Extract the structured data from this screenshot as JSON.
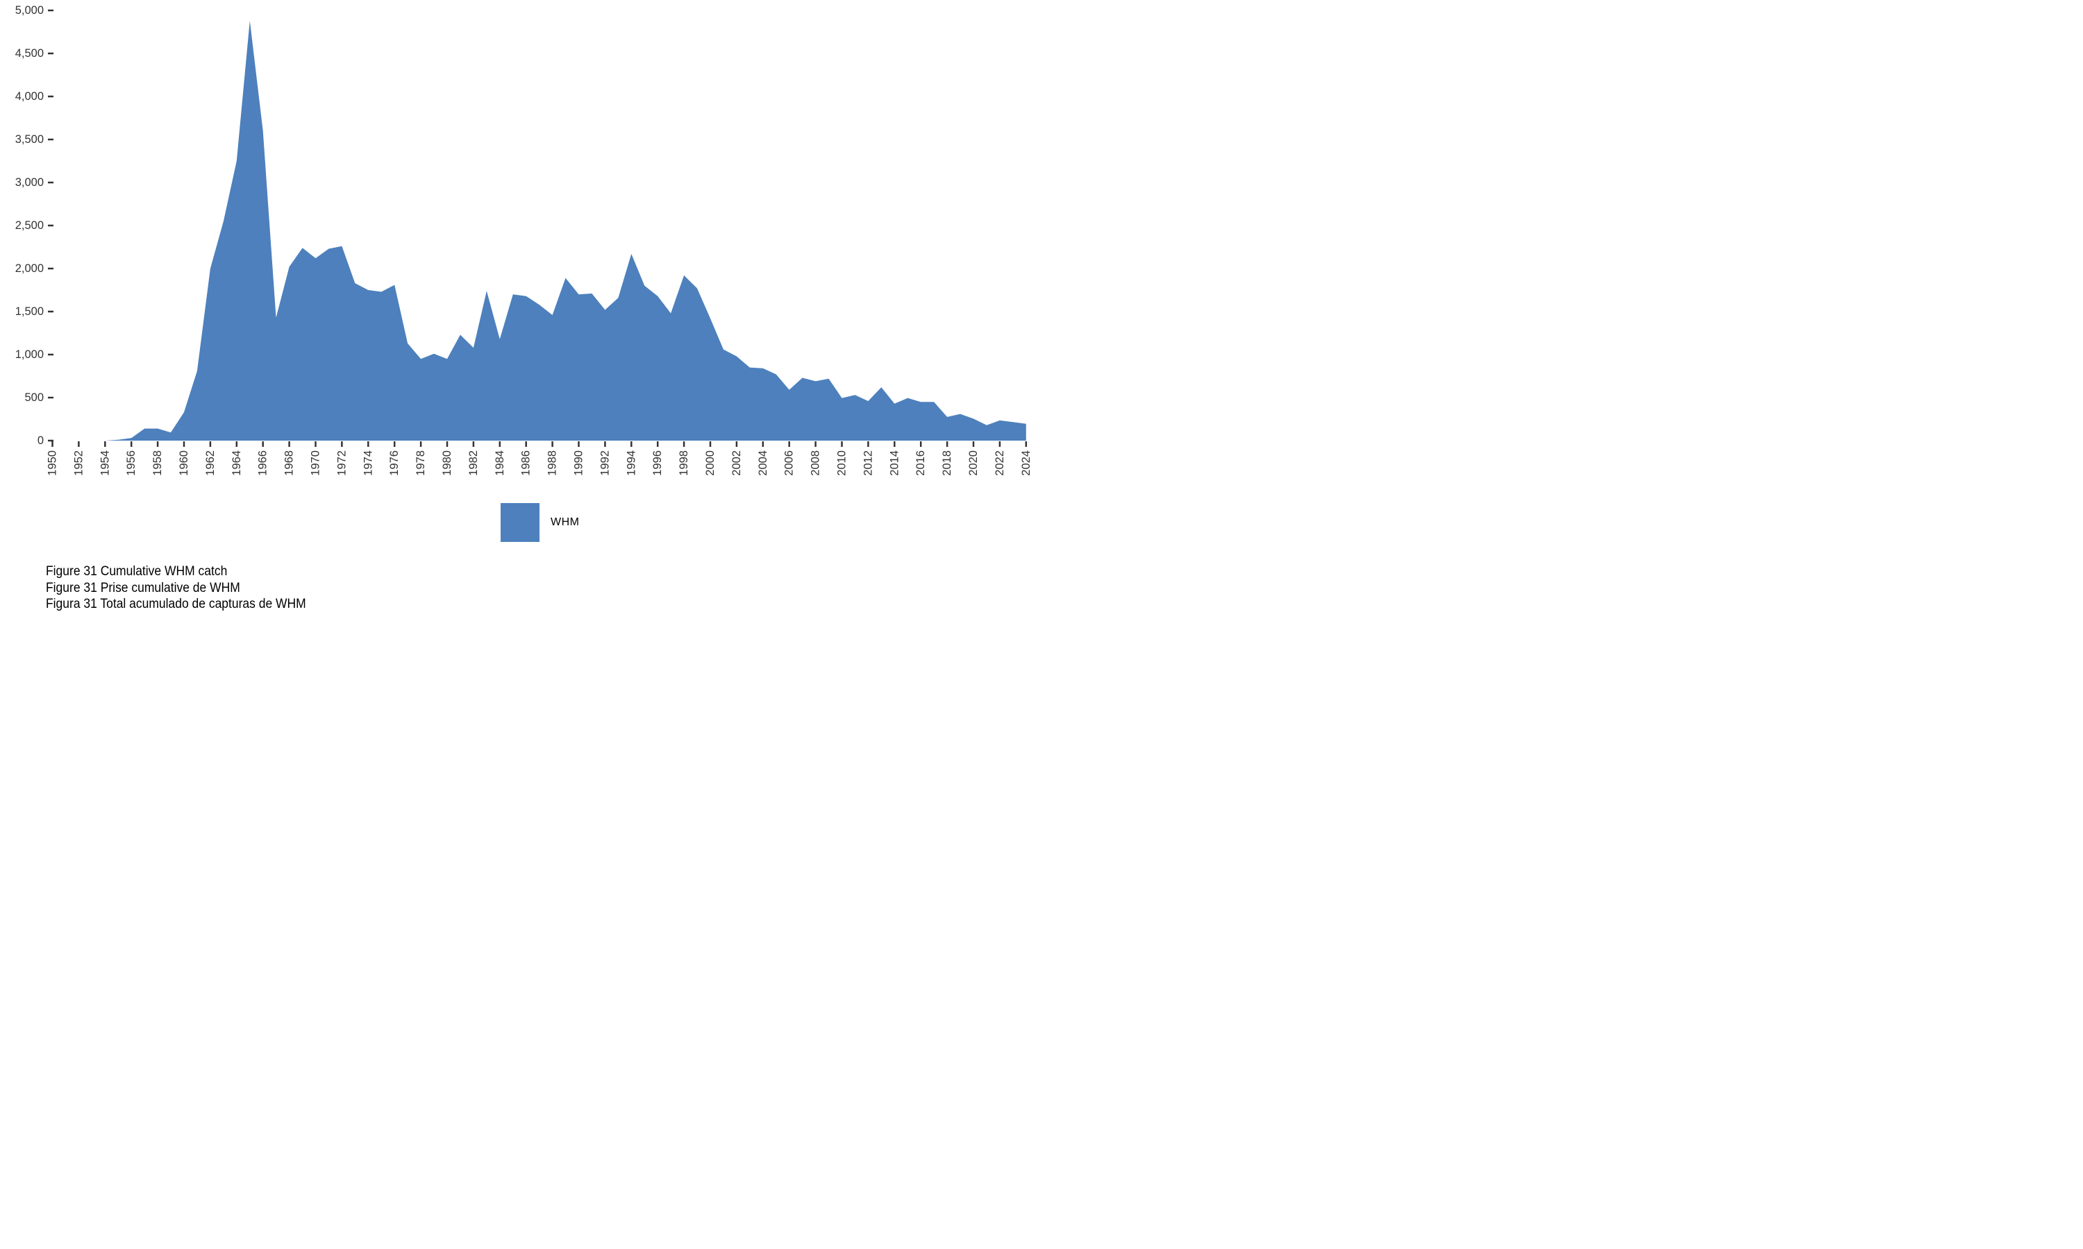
{
  "chart_data": {
    "type": "area",
    "title": "",
    "xlabel": "",
    "ylabel": "",
    "xlim": [
      1950,
      2024
    ],
    "ylim": [
      0,
      5000
    ],
    "grid": false,
    "legend_position": "bottom-center",
    "xtick_interval": 2,
    "ytick_interval": 500,
    "ytick_labels": [
      "0",
      "500",
      "1,000",
      "1,500",
      "2,000",
      "2,500",
      "3,000",
      "3,500",
      "4,000",
      "4,500",
      "5,000"
    ],
    "xtick_labels": [
      "1950",
      "1952",
      "1954",
      "1956",
      "1958",
      "1960",
      "1962",
      "1964",
      "1966",
      "1968",
      "1970",
      "1972",
      "1974",
      "1976",
      "1978",
      "1980",
      "1982",
      "1984",
      "1986",
      "1988",
      "1990",
      "1992",
      "1994",
      "1996",
      "1998",
      "2000",
      "2002",
      "2004",
      "2006",
      "2008",
      "2010",
      "2012",
      "2014",
      "2016",
      "2018",
      "2020",
      "2022",
      "2024"
    ],
    "x": [
      1950,
      1951,
      1952,
      1953,
      1954,
      1955,
      1956,
      1957,
      1958,
      1959,
      1960,
      1961,
      1962,
      1963,
      1964,
      1965,
      1966,
      1967,
      1968,
      1969,
      1970,
      1971,
      1972,
      1973,
      1974,
      1975,
      1976,
      1977,
      1978,
      1979,
      1980,
      1981,
      1982,
      1983,
      1984,
      1985,
      1986,
      1987,
      1988,
      1989,
      1990,
      1991,
      1992,
      1993,
      1994,
      1995,
      1996,
      1997,
      1998,
      1999,
      2000,
      2001,
      2002,
      2003,
      2004,
      2005,
      2006,
      2007,
      2008,
      2009,
      2010,
      2011,
      2012,
      2013,
      2014,
      2015,
      2016,
      2017,
      2018,
      2019,
      2020,
      2021,
      2022,
      2023,
      2024
    ],
    "series": [
      {
        "name": "WHM",
        "color": "#4d80bd",
        "values": [
          0,
          0,
          0,
          0,
          0,
          10,
          30,
          140,
          140,
          95,
          330,
          810,
          2000,
          2550,
          3250,
          4880,
          3600,
          1430,
          2020,
          2240,
          2120,
          2230,
          2260,
          1830,
          1750,
          1730,
          1810,
          1130,
          950,
          1010,
          950,
          1230,
          1080,
          1740,
          1180,
          1700,
          1680,
          1580,
          1460,
          1890,
          1700,
          1710,
          1520,
          1660,
          2170,
          1800,
          1680,
          1480,
          1920,
          1770,
          1420,
          1060,
          980,
          850,
          840,
          770,
          590,
          730,
          690,
          720,
          495,
          530,
          460,
          620,
          430,
          495,
          450,
          450,
          275,
          310,
          255,
          180,
          235,
          215,
          195
        ]
      }
    ]
  },
  "legend": {
    "label": "WHM"
  },
  "captions": {
    "en": "Figure 31 Cumulative WHM catch",
    "fr": "Figure 31 Prise cumulative de WHM",
    "es": "Figura 31 Total acumulado de capturas de WHM"
  },
  "colors": {
    "area": "#4d80bd",
    "axis": "#333333",
    "tick_label": "#333333",
    "caption": "#000000"
  }
}
